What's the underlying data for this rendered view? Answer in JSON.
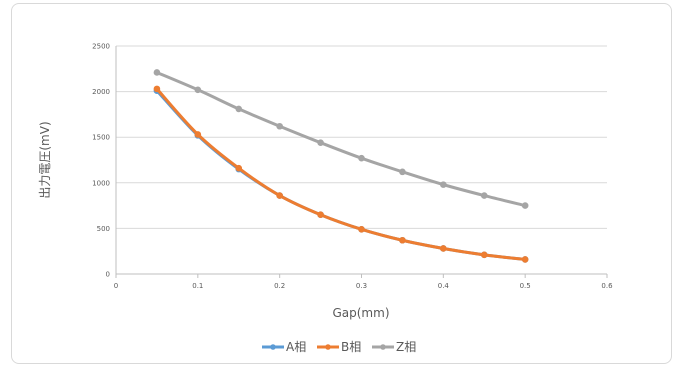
{
  "chart_data": {
    "type": "line",
    "title": "",
    "xlabel": "Gap(mm)",
    "ylabel": "出力電圧(mV)",
    "xlim": [
      0,
      0.6
    ],
    "ylim": [
      0,
      2500
    ],
    "x_ticks": [
      "0",
      "0.1",
      "0.2",
      "0.3",
      "0.4",
      "0.5",
      "0.6"
    ],
    "y_ticks": [
      "0",
      "500",
      "1000",
      "1500",
      "2000",
      "2500"
    ],
    "grid": "horizontal",
    "legend": "bottom",
    "x": [
      0.05,
      0.1,
      0.15,
      0.2,
      0.25,
      0.3,
      0.35,
      0.4,
      0.45,
      0.5
    ],
    "series": [
      {
        "name": "A相",
        "color": "#5b9bd5",
        "values": [
          2010,
          1520,
          1150,
          860,
          650,
          490,
          370,
          280,
          210,
          160
        ]
      },
      {
        "name": "B相",
        "color": "#ed7d31",
        "values": [
          2030,
          1530,
          1160,
          860,
          650,
          490,
          370,
          280,
          210,
          160
        ]
      },
      {
        "name": "Z相",
        "color": "#a5a5a5",
        "values": [
          2210,
          2020,
          1810,
          1620,
          1440,
          1270,
          1120,
          980,
          860,
          750
        ]
      }
    ]
  }
}
